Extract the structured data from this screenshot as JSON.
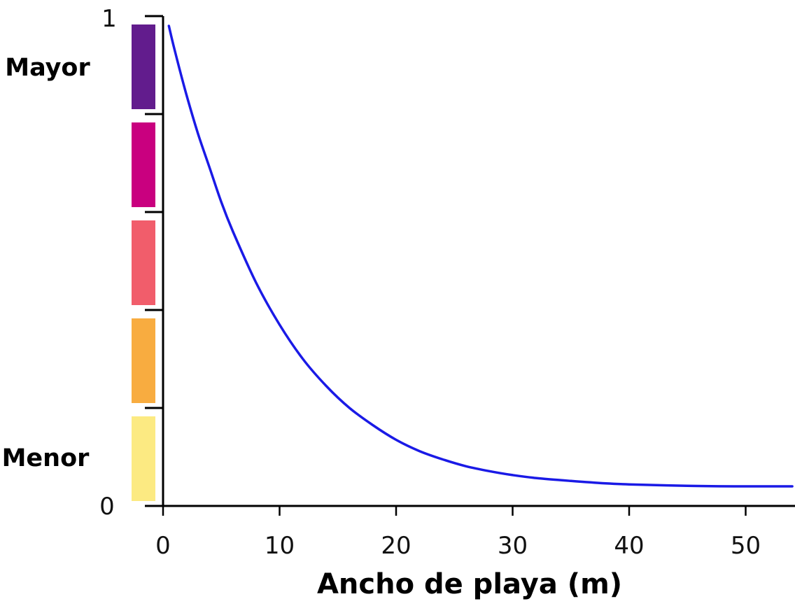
{
  "chart_data": {
    "type": "line",
    "title": "",
    "xlabel": "Ancho de playa (m)",
    "ylabel": "",
    "xlim": [
      0,
      54
    ],
    "ylim": [
      0,
      1
    ],
    "x_ticks": [
      "0",
      "10",
      "20",
      "30",
      "40",
      "50"
    ],
    "y_tick_labels": {
      "top": "1",
      "bottom": "0"
    },
    "y_level_labels": {
      "high": "Mayor",
      "low": "Menor"
    },
    "color_scale": [
      "#fcea82",
      "#f8ac40",
      "#f15d6b",
      "#c9007f",
      "#621c8d"
    ],
    "grid": false,
    "legend": "none",
    "series": [
      {
        "color": "#1a1ae6",
        "x": [
          0.5,
          1,
          2,
          3,
          4,
          5,
          6,
          8,
          10,
          12,
          14,
          16,
          18,
          20,
          22,
          24,
          26,
          28,
          30,
          32,
          35,
          38,
          40,
          45,
          50,
          54
        ],
        "y": [
          0.98,
          0.93,
          0.84,
          0.76,
          0.69,
          0.62,
          0.56,
          0.455,
          0.37,
          0.3,
          0.245,
          0.2,
          0.165,
          0.135,
          0.112,
          0.095,
          0.081,
          0.071,
          0.063,
          0.057,
          0.051,
          0.046,
          0.044,
          0.041,
          0.04,
          0.04
        ]
      }
    ]
  }
}
